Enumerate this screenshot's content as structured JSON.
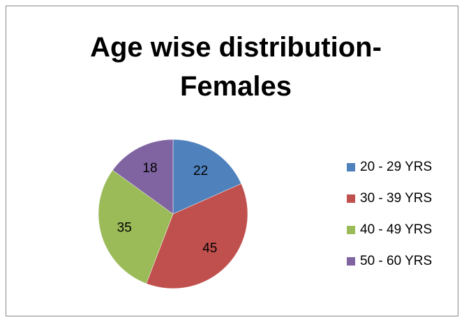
{
  "chart_data": {
    "type": "pie",
    "title": "Age wise distribution-Females",
    "categories": [
      "20 - 29 YRS",
      "30 - 39 YRS",
      "40 - 49 YRS",
      "50 - 60 YRS"
    ],
    "values": [
      22,
      45,
      35,
      18
    ],
    "colors": [
      "#4f81bd",
      "#c0504d",
      "#9bbb59",
      "#8064a2"
    ],
    "legend": "right"
  }
}
